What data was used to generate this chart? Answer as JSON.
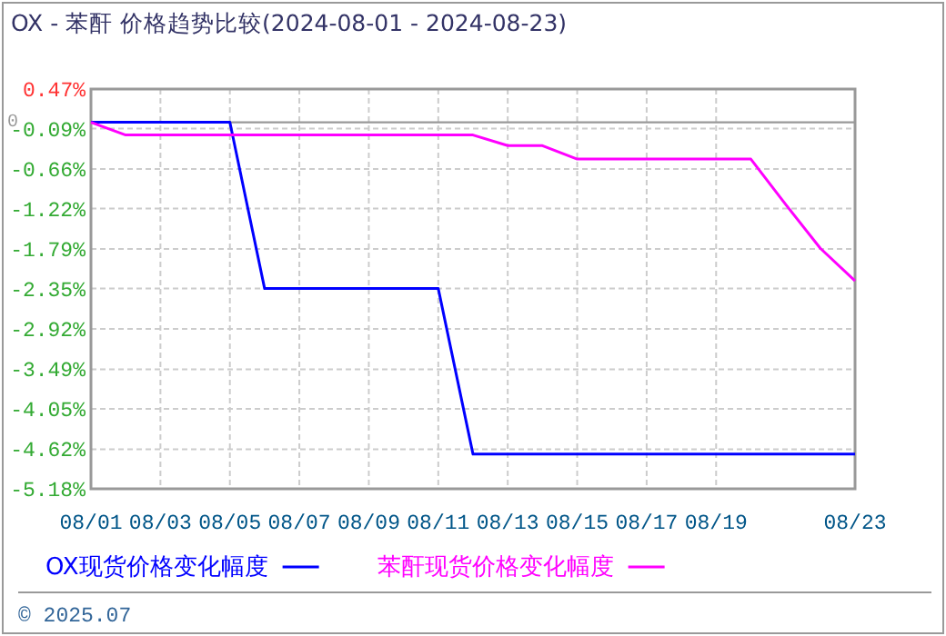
{
  "chart_data": {
    "type": "line",
    "title": "OX - 苯酐 价格趋势比较(2024-08-01 - 2024-08-23)",
    "annotations": [
      "© 2025.07"
    ],
    "xlim": [
      "2024-08-01",
      "2024-08-23"
    ],
    "xticks": [
      {
        "value": "2024-08-01",
        "label": "08/01"
      },
      {
        "value": "2024-08-03",
        "label": "08/03"
      },
      {
        "value": "2024-08-05",
        "label": "08/05"
      },
      {
        "value": "2024-08-07",
        "label": "08/07"
      },
      {
        "value": "2024-08-09",
        "label": "08/09"
      },
      {
        "value": "2024-08-11",
        "label": "08/11"
      },
      {
        "value": "2024-08-13",
        "label": "08/13"
      },
      {
        "value": "2024-08-15",
        "label": "08/15"
      },
      {
        "value": "2024-08-17",
        "label": "08/17"
      },
      {
        "value": "2024-08-19",
        "label": "08/19"
      },
      {
        "value": "2024-08-23",
        "label": "08/23"
      }
    ],
    "ylim": [
      -5.18,
      0.47
    ],
    "yticks": [
      {
        "value": 0.47,
        "label": "0.47%"
      },
      {
        "value": -0.09,
        "label": "-0.09%"
      },
      {
        "value": -0.66,
        "label": "-0.66%"
      },
      {
        "value": -1.22,
        "label": "-1.22%"
      },
      {
        "value": -1.79,
        "label": "-1.79%"
      },
      {
        "value": -2.35,
        "label": "-2.35%"
      },
      {
        "value": -2.92,
        "label": "-2.92%"
      },
      {
        "value": -3.49,
        "label": "-3.49%"
      },
      {
        "value": -4.05,
        "label": "-4.05%"
      },
      {
        "value": -4.62,
        "label": "-4.62%"
      },
      {
        "value": -5.18,
        "label": "-5.18%"
      }
    ],
    "ref_lines": [
      {
        "axis": "y",
        "value": 0,
        "label": "0",
        "color": "#999999"
      }
    ],
    "grid": true,
    "legend": "bottom",
    "marker": "none",
    "line_style": "solid",
    "series": [
      {
        "name": "OX现货价格变化幅度",
        "color": "#0000ff",
        "x": [
          "2024-08-01",
          "2024-08-05",
          "2024-08-06",
          "2024-08-11",
          "2024-08-12",
          "2024-08-23"
        ],
        "values": [
          0,
          0,
          -2.35,
          -2.35,
          -4.69,
          -4.69
        ]
      },
      {
        "name": "苯酐现货价格变化幅度",
        "color": "#ff00ff",
        "x": [
          "2024-08-01",
          "2024-08-02",
          "2024-08-12",
          "2024-08-13",
          "2024-08-14",
          "2024-08-15",
          "2024-08-20",
          "2024-08-21",
          "2024-08-22",
          "2024-08-23"
        ],
        "values": [
          0,
          -0.18,
          -0.18,
          -0.33,
          -0.33,
          -0.52,
          -0.52,
          -1.16,
          -1.78,
          -2.24
        ]
      }
    ]
  }
}
